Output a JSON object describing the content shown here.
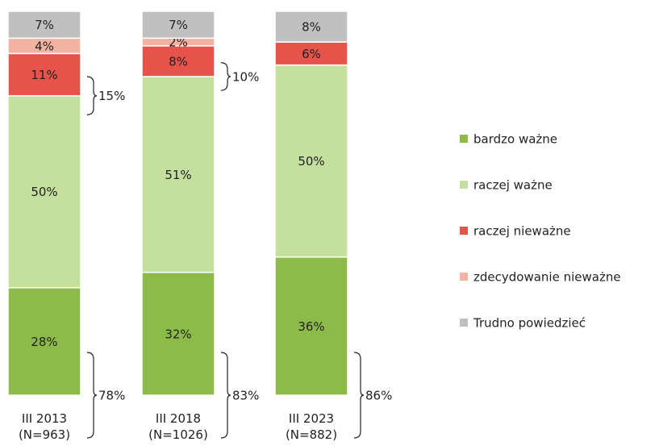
{
  "chart_data": {
    "type": "stacked_bar",
    "categories": [
      "III 2013\n(N=963)",
      "III 2018\n(N=1026)",
      "III 2023\n(N=882)"
    ],
    "ylim": [
      0,
      100
    ],
    "series": [
      {
        "name": "bardzo ważne",
        "color": "#8cbb4a",
        "values": [
          28,
          32,
          36
        ],
        "value_labels": [
          "28%",
          "32%",
          "36%"
        ]
      },
      {
        "name": "raczej ważne",
        "color": "#c5df9f",
        "values": [
          50,
          51,
          50
        ],
        "value_labels": [
          "50%",
          "51%",
          "50%"
        ]
      },
      {
        "name": "raczej nieważne",
        "color": "#e5534b",
        "values": [
          11,
          8,
          6
        ],
        "value_labels": [
          "11%",
          "8%",
          "6%"
        ]
      },
      {
        "name": "zdecydowanie nieważne",
        "color": "#f4b3a0",
        "values": [
          4,
          2,
          0
        ],
        "value_labels": [
          "4%",
          "2%",
          null
        ]
      },
      {
        "name": "Trudno powiedzieć",
        "color": "#c0c0c0",
        "values": [
          7,
          7,
          8
        ],
        "value_labels": [
          "7%",
          "7%",
          "8%"
        ]
      }
    ],
    "annotations": [
      {
        "value": 78,
        "label": "78%",
        "category": 0,
        "series": [
          0,
          1
        ]
      },
      {
        "value": 83,
        "label": "83%",
        "category": 1,
        "series": [
          0,
          1
        ]
      },
      {
        "value": 86,
        "label": "86%",
        "category": 2,
        "series": [
          0,
          1
        ]
      },
      {
        "value": 15,
        "label": "15%",
        "category": 0,
        "series": [
          2,
          3
        ]
      },
      {
        "value": 10,
        "label": "10%",
        "category": 1,
        "series": [
          2,
          3
        ]
      }
    ],
    "legend": "right"
  }
}
